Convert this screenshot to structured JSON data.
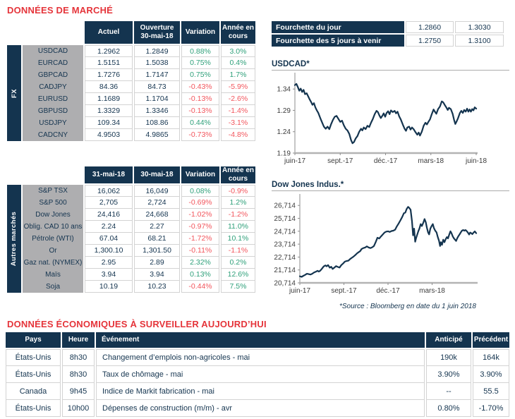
{
  "colors": {
    "navy": "#14344F",
    "accent_red": "#E5343A",
    "positive_green": "#2FA07A",
    "negative_red": "#F2555C",
    "label_gray": "#AEAEB0"
  },
  "sections": {
    "market": {
      "title": "DONNÉES DE MARCHÉ"
    },
    "econ": {
      "title": "DONNÉES ÉCONOMIQUES À SURVEILLER AUJOURD’HUI"
    },
    "source_note": "*Source : Bloomberg en date du  1 juin 2018"
  },
  "fx_table": {
    "group_label": "FX",
    "headers": [
      "Actuel",
      "Ouverture\n30-mai-18",
      "Variation",
      "Année en\ncours"
    ],
    "rows": [
      {
        "label": "USDCAD",
        "values": [
          "1.2962",
          "1.2849",
          "0.88%",
          "3.0%"
        ]
      },
      {
        "label": "EURCAD",
        "values": [
          "1.5151",
          "1.5038",
          "0.75%",
          "0.4%"
        ]
      },
      {
        "label": "GBPCAD",
        "values": [
          "1.7276",
          "1.7147",
          "0.75%",
          "1.7%"
        ]
      },
      {
        "label": "CADJPY",
        "values": [
          "84.36",
          "84.73",
          "-0.43%",
          "-5.9%"
        ]
      },
      {
        "label": "EURUSD",
        "values": [
          "1.1689",
          "1.1704",
          "-0.13%",
          "-2.6%"
        ]
      },
      {
        "label": "GBPUSD",
        "values": [
          "1.3329",
          "1.3346",
          "-0.13%",
          "-1.4%"
        ]
      },
      {
        "label": "USDJPY",
        "values": [
          "109.34",
          "108.86",
          "0.44%",
          "-3.1%"
        ]
      },
      {
        "label": "CADCNY",
        "values": [
          "4.9503",
          "4.9865",
          "-0.73%",
          "-4.8%"
        ]
      }
    ]
  },
  "markets_table": {
    "group_label": "Autres marchés",
    "headers": [
      "31-mai-18",
      "30-mai-18",
      "Variation",
      "Année en\ncours"
    ],
    "rows": [
      {
        "label": "S&P TSX",
        "values": [
          "16,062",
          "16,049",
          "0.08%",
          "-0.9%"
        ]
      },
      {
        "label": "S&P 500",
        "values": [
          "2,705",
          "2,724",
          "-0.69%",
          "1.2%"
        ]
      },
      {
        "label": "Dow Jones",
        "values": [
          "24,416",
          "24,668",
          "-1.02%",
          "-1.2%"
        ]
      },
      {
        "label": "Oblig. CAD 10 ans",
        "values": [
          "2.24",
          "2.27",
          "-0.97%",
          "11.0%"
        ]
      },
      {
        "label": "Pétrole (WTI)",
        "values": [
          "67.04",
          "68.21",
          "-1.72%",
          "10.1%"
        ]
      },
      {
        "label": "Or",
        "values": [
          "1,300.10",
          "1,301.50",
          "-0.11%",
          "-1.1%"
        ]
      },
      {
        "label": "Gaz nat. (NYMEX)",
        "values": [
          "2.95",
          "2.89",
          "2.32%",
          "0.2%"
        ]
      },
      {
        "label": "Maïs",
        "values": [
          "3.94",
          "3.94",
          "0.13%",
          "12.6%"
        ]
      },
      {
        "label": "Soja",
        "values": [
          "10.19",
          "10.23",
          "-0.44%",
          "7.5%"
        ]
      }
    ]
  },
  "range_table": {
    "rows": [
      {
        "label": "Fourchette du jour",
        "low": "1.2860",
        "high": "1.3030"
      },
      {
        "label": "Fourchette des 5 jours à venir",
        "low": "1.2750",
        "high": "1.3100"
      }
    ]
  },
  "econ_table": {
    "headers": [
      "Pays",
      "Heure",
      "Événement",
      "Anticipé",
      "Précédent"
    ],
    "rows": [
      {
        "values": [
          "États-Unis",
          "8h30",
          "Changement d’emplois non-agricoles - mai",
          "190k",
          "164k"
        ]
      },
      {
        "values": [
          "États-Unis",
          "8h30",
          "Taux de chômage - mai",
          "3.90%",
          "3.90%"
        ]
      },
      {
        "values": [
          "Canada",
          "9h45",
          "Indice de Markit fabrication - mai",
          "--",
          "55.5"
        ]
      },
      {
        "values": [
          "États-Unis",
          "10h00",
          "Dépenses de construction (m/m) - avr",
          "0.80%",
          "-1.70%"
        ]
      }
    ]
  },
  "chart_data": [
    {
      "type": "line",
      "title": "USDCAD*",
      "line_color": "#14344F",
      "ylim": [
        1.19,
        1.375
      ],
      "yticks": [
        {
          "v": 1.19,
          "label": "1.19"
        },
        {
          "v": 1.24,
          "label": "1.24"
        },
        {
          "v": 1.29,
          "label": "1.29"
        },
        {
          "v": 1.34,
          "label": "1.34"
        }
      ],
      "xticks": [
        {
          "t": 0,
          "label": "juin-17"
        },
        {
          "t": 0.25,
          "label": "sept.-17"
        },
        {
          "t": 0.5,
          "label": "déc.-17"
        },
        {
          "t": 0.75,
          "label": "mars-18"
        },
        {
          "t": 1,
          "label": "juin-18"
        }
      ],
      "series": [
        [
          0,
          1.349
        ],
        [
          0.008,
          1.352
        ],
        [
          0.016,
          1.345
        ],
        [
          0.024,
          1.336
        ],
        [
          0.032,
          1.341
        ],
        [
          0.04,
          1.333
        ],
        [
          0.048,
          1.338
        ],
        [
          0.056,
          1.328
        ],
        [
          0.065,
          1.33
        ],
        [
          0.073,
          1.323
        ],
        [
          0.081,
          1.316
        ],
        [
          0.089,
          1.31
        ],
        [
          0.097,
          1.303
        ],
        [
          0.105,
          1.307
        ],
        [
          0.113,
          1.297
        ],
        [
          0.121,
          1.29
        ],
        [
          0.129,
          1.284
        ],
        [
          0.14,
          1.272
        ],
        [
          0.15,
          1.262
        ],
        [
          0.16,
          1.252
        ],
        [
          0.17,
          1.247
        ],
        [
          0.18,
          1.252
        ],
        [
          0.19,
          1.246
        ],
        [
          0.2,
          1.258
        ],
        [
          0.21,
          1.268
        ],
        [
          0.22,
          1.275
        ],
        [
          0.23,
          1.277
        ],
        [
          0.24,
          1.27
        ],
        [
          0.25,
          1.263
        ],
        [
          0.26,
          1.266
        ],
        [
          0.27,
          1.255
        ],
        [
          0.28,
          1.247
        ],
        [
          0.29,
          1.243
        ],
        [
          0.3,
          1.235
        ],
        [
          0.31,
          1.22
        ],
        [
          0.318,
          1.213
        ],
        [
          0.326,
          1.216
        ],
        [
          0.335,
          1.224
        ],
        [
          0.345,
          1.23
        ],
        [
          0.355,
          1.24
        ],
        [
          0.365,
          1.247
        ],
        [
          0.372,
          1.243
        ],
        [
          0.38,
          1.25
        ],
        [
          0.39,
          1.246
        ],
        [
          0.4,
          1.254
        ],
        [
          0.41,
          1.251
        ],
        [
          0.42,
          1.261
        ],
        [
          0.43,
          1.27
        ],
        [
          0.44,
          1.281
        ],
        [
          0.45,
          1.289
        ],
        [
          0.458,
          1.286
        ],
        [
          0.466,
          1.278
        ],
        [
          0.474,
          1.272
        ],
        [
          0.482,
          1.277
        ],
        [
          0.49,
          1.283
        ],
        [
          0.498,
          1.275
        ],
        [
          0.506,
          1.284
        ],
        [
          0.514,
          1.288
        ],
        [
          0.522,
          1.281
        ],
        [
          0.53,
          1.29
        ],
        [
          0.54,
          1.286
        ],
        [
          0.55,
          1.289
        ],
        [
          0.558,
          1.283
        ],
        [
          0.566,
          1.287
        ],
        [
          0.575,
          1.276
        ],
        [
          0.585,
          1.268
        ],
        [
          0.595,
          1.257
        ],
        [
          0.605,
          1.247
        ],
        [
          0.613,
          1.242
        ],
        [
          0.62,
          1.25
        ],
        [
          0.63,
          1.252
        ],
        [
          0.638,
          1.245
        ],
        [
          0.646,
          1.25
        ],
        [
          0.655,
          1.246
        ],
        [
          0.665,
          1.239
        ],
        [
          0.675,
          1.233
        ],
        [
          0.683,
          1.238
        ],
        [
          0.69,
          1.231
        ],
        [
          0.7,
          1.24
        ],
        [
          0.71,
          1.254
        ],
        [
          0.72,
          1.261
        ],
        [
          0.728,
          1.257
        ],
        [
          0.736,
          1.263
        ],
        [
          0.745,
          1.269
        ],
        [
          0.755,
          1.281
        ],
        [
          0.765,
          1.292
        ],
        [
          0.772,
          1.287
        ],
        [
          0.78,
          1.282
        ],
        [
          0.79,
          1.293
        ],
        [
          0.8,
          1.299
        ],
        [
          0.81,
          1.311
        ],
        [
          0.818,
          1.309
        ],
        [
          0.826,
          1.303
        ],
        [
          0.835,
          1.297
        ],
        [
          0.843,
          1.291
        ],
        [
          0.85,
          1.296
        ],
        [
          0.86,
          1.293
        ],
        [
          0.87,
          1.282
        ],
        [
          0.878,
          1.268
        ],
        [
          0.885,
          1.258
        ],
        [
          0.893,
          1.265
        ],
        [
          0.9,
          1.272
        ],
        [
          0.91,
          1.284
        ],
        [
          0.918,
          1.289
        ],
        [
          0.926,
          1.284
        ],
        [
          0.934,
          1.291
        ],
        [
          0.942,
          1.287
        ],
        [
          0.95,
          1.294
        ],
        [
          0.957,
          1.287
        ],
        [
          0.964,
          1.292
        ],
        [
          0.971,
          1.287
        ],
        [
          0.978,
          1.293
        ],
        [
          0.985,
          1.29
        ],
        [
          0.992,
          1.297
        ],
        [
          1,
          1.294
        ]
      ]
    },
    {
      "type": "line",
      "title": "Dow Jones Indus.*",
      "line_color": "#14344F",
      "ylim": [
        20714,
        27492
      ],
      "yticks": [
        {
          "v": 20714,
          "label": "20,714"
        },
        {
          "v": 21714,
          "label": "21,714"
        },
        {
          "v": 22714,
          "label": "22,714"
        },
        {
          "v": 23714,
          "label": "23,714"
        },
        {
          "v": 24714,
          "label": "24,714"
        },
        {
          "v": 25714,
          "label": "25,714"
        },
        {
          "v": 26714,
          "label": "26,714"
        }
      ],
      "xticks": [
        {
          "t": 0,
          "label": "juin-17"
        },
        {
          "t": 0.25,
          "label": "sept.-17"
        },
        {
          "t": 0.5,
          "label": "déc.-17"
        },
        {
          "t": 0.75,
          "label": "mars-18"
        }
      ],
      "series": [
        [
          0,
          21230
        ],
        [
          0.01,
          21180
        ],
        [
          0.02,
          21260
        ],
        [
          0.03,
          21330
        ],
        [
          0.04,
          21420
        ],
        [
          0.05,
          21390
        ],
        [
          0.06,
          21360
        ],
        [
          0.07,
          21420
        ],
        [
          0.08,
          21510
        ],
        [
          0.09,
          21570
        ],
        [
          0.1,
          21650
        ],
        [
          0.108,
          21590
        ],
        [
          0.116,
          21660
        ],
        [
          0.125,
          21810
        ],
        [
          0.135,
          21990
        ],
        [
          0.145,
          22070
        ],
        [
          0.152,
          22000
        ],
        [
          0.16,
          22090
        ],
        [
          0.17,
          21890
        ],
        [
          0.178,
          21960
        ],
        [
          0.186,
          21790
        ],
        [
          0.195,
          21890
        ],
        [
          0.205,
          22010
        ],
        [
          0.215,
          21950
        ],
        [
          0.225,
          21900
        ],
        [
          0.235,
          22090
        ],
        [
          0.245,
          22210
        ],
        [
          0.255,
          22360
        ],
        [
          0.265,
          22410
        ],
        [
          0.275,
          22430
        ],
        [
          0.285,
          22560
        ],
        [
          0.295,
          22660
        ],
        [
          0.305,
          22760
        ],
        [
          0.315,
          22880
        ],
        [
          0.325,
          23010
        ],
        [
          0.335,
          23110
        ],
        [
          0.342,
          23170
        ],
        [
          0.35,
          23340
        ],
        [
          0.36,
          23410
        ],
        [
          0.37,
          23450
        ],
        [
          0.38,
          23540
        ],
        [
          0.39,
          23460
        ],
        [
          0.4,
          23410
        ],
        [
          0.41,
          23470
        ],
        [
          0.42,
          23570
        ],
        [
          0.43,
          23870
        ],
        [
          0.44,
          24210
        ],
        [
          0.45,
          24150
        ],
        [
          0.46,
          24310
        ],
        [
          0.47,
          24460
        ],
        [
          0.48,
          24610
        ],
        [
          0.49,
          24690
        ],
        [
          0.5,
          24710
        ],
        [
          0.51,
          24660
        ],
        [
          0.52,
          24730
        ],
        [
          0.53,
          24760
        ],
        [
          0.54,
          24830
        ],
        [
          0.55,
          25090
        ],
        [
          0.56,
          25310
        ],
        [
          0.57,
          25550
        ],
        [
          0.58,
          25810
        ],
        [
          0.59,
          26110
        ],
        [
          0.598,
          26160
        ],
        [
          0.606,
          26450
        ],
        [
          0.614,
          26600
        ],
        [
          0.62,
          26530
        ],
        [
          0.628,
          26380
        ],
        [
          0.636,
          25480
        ],
        [
          0.642,
          24400
        ],
        [
          0.648,
          24920
        ],
        [
          0.654,
          23900
        ],
        [
          0.66,
          24220
        ],
        [
          0.666,
          24470
        ],
        [
          0.672,
          24720
        ],
        [
          0.678,
          24920
        ],
        [
          0.685,
          25270
        ],
        [
          0.692,
          25120
        ],
        [
          0.7,
          25370
        ],
        [
          0.707,
          25660
        ],
        [
          0.714,
          25420
        ],
        [
          0.72,
          25010
        ],
        [
          0.727,
          24620
        ],
        [
          0.733,
          24470
        ],
        [
          0.74,
          24920
        ],
        [
          0.747,
          25120
        ],
        [
          0.754,
          25270
        ],
        [
          0.76,
          24970
        ],
        [
          0.767,
          24770
        ],
        [
          0.775,
          24620
        ],
        [
          0.782,
          24270
        ],
        [
          0.789,
          23970
        ],
        [
          0.795,
          23570
        ],
        [
          0.8,
          23860
        ],
        [
          0.806,
          23660
        ],
        [
          0.813,
          24060
        ],
        [
          0.82,
          23860
        ],
        [
          0.827,
          24110
        ],
        [
          0.834,
          24260
        ],
        [
          0.84,
          24160
        ],
        [
          0.847,
          24460
        ],
        [
          0.854,
          24710
        ],
        [
          0.86,
          24560
        ],
        [
          0.867,
          24310
        ],
        [
          0.874,
          24160
        ],
        [
          0.88,
          24060
        ],
        [
          0.886,
          23960
        ],
        [
          0.892,
          24160
        ],
        [
          0.898,
          24310
        ],
        [
          0.905,
          24460
        ],
        [
          0.912,
          24610
        ],
        [
          0.919,
          24760
        ],
        [
          0.926,
          24810
        ],
        [
          0.933,
          24760
        ],
        [
          0.94,
          24810
        ],
        [
          0.947,
          24710
        ],
        [
          0.954,
          24590
        ],
        [
          0.96,
          24460
        ],
        [
          0.966,
          24610
        ],
        [
          0.972,
          24560
        ],
        [
          0.978,
          24490
        ],
        [
          0.985,
          24610
        ],
        [
          0.992,
          24700
        ],
        [
          1,
          24560
        ]
      ]
    }
  ]
}
